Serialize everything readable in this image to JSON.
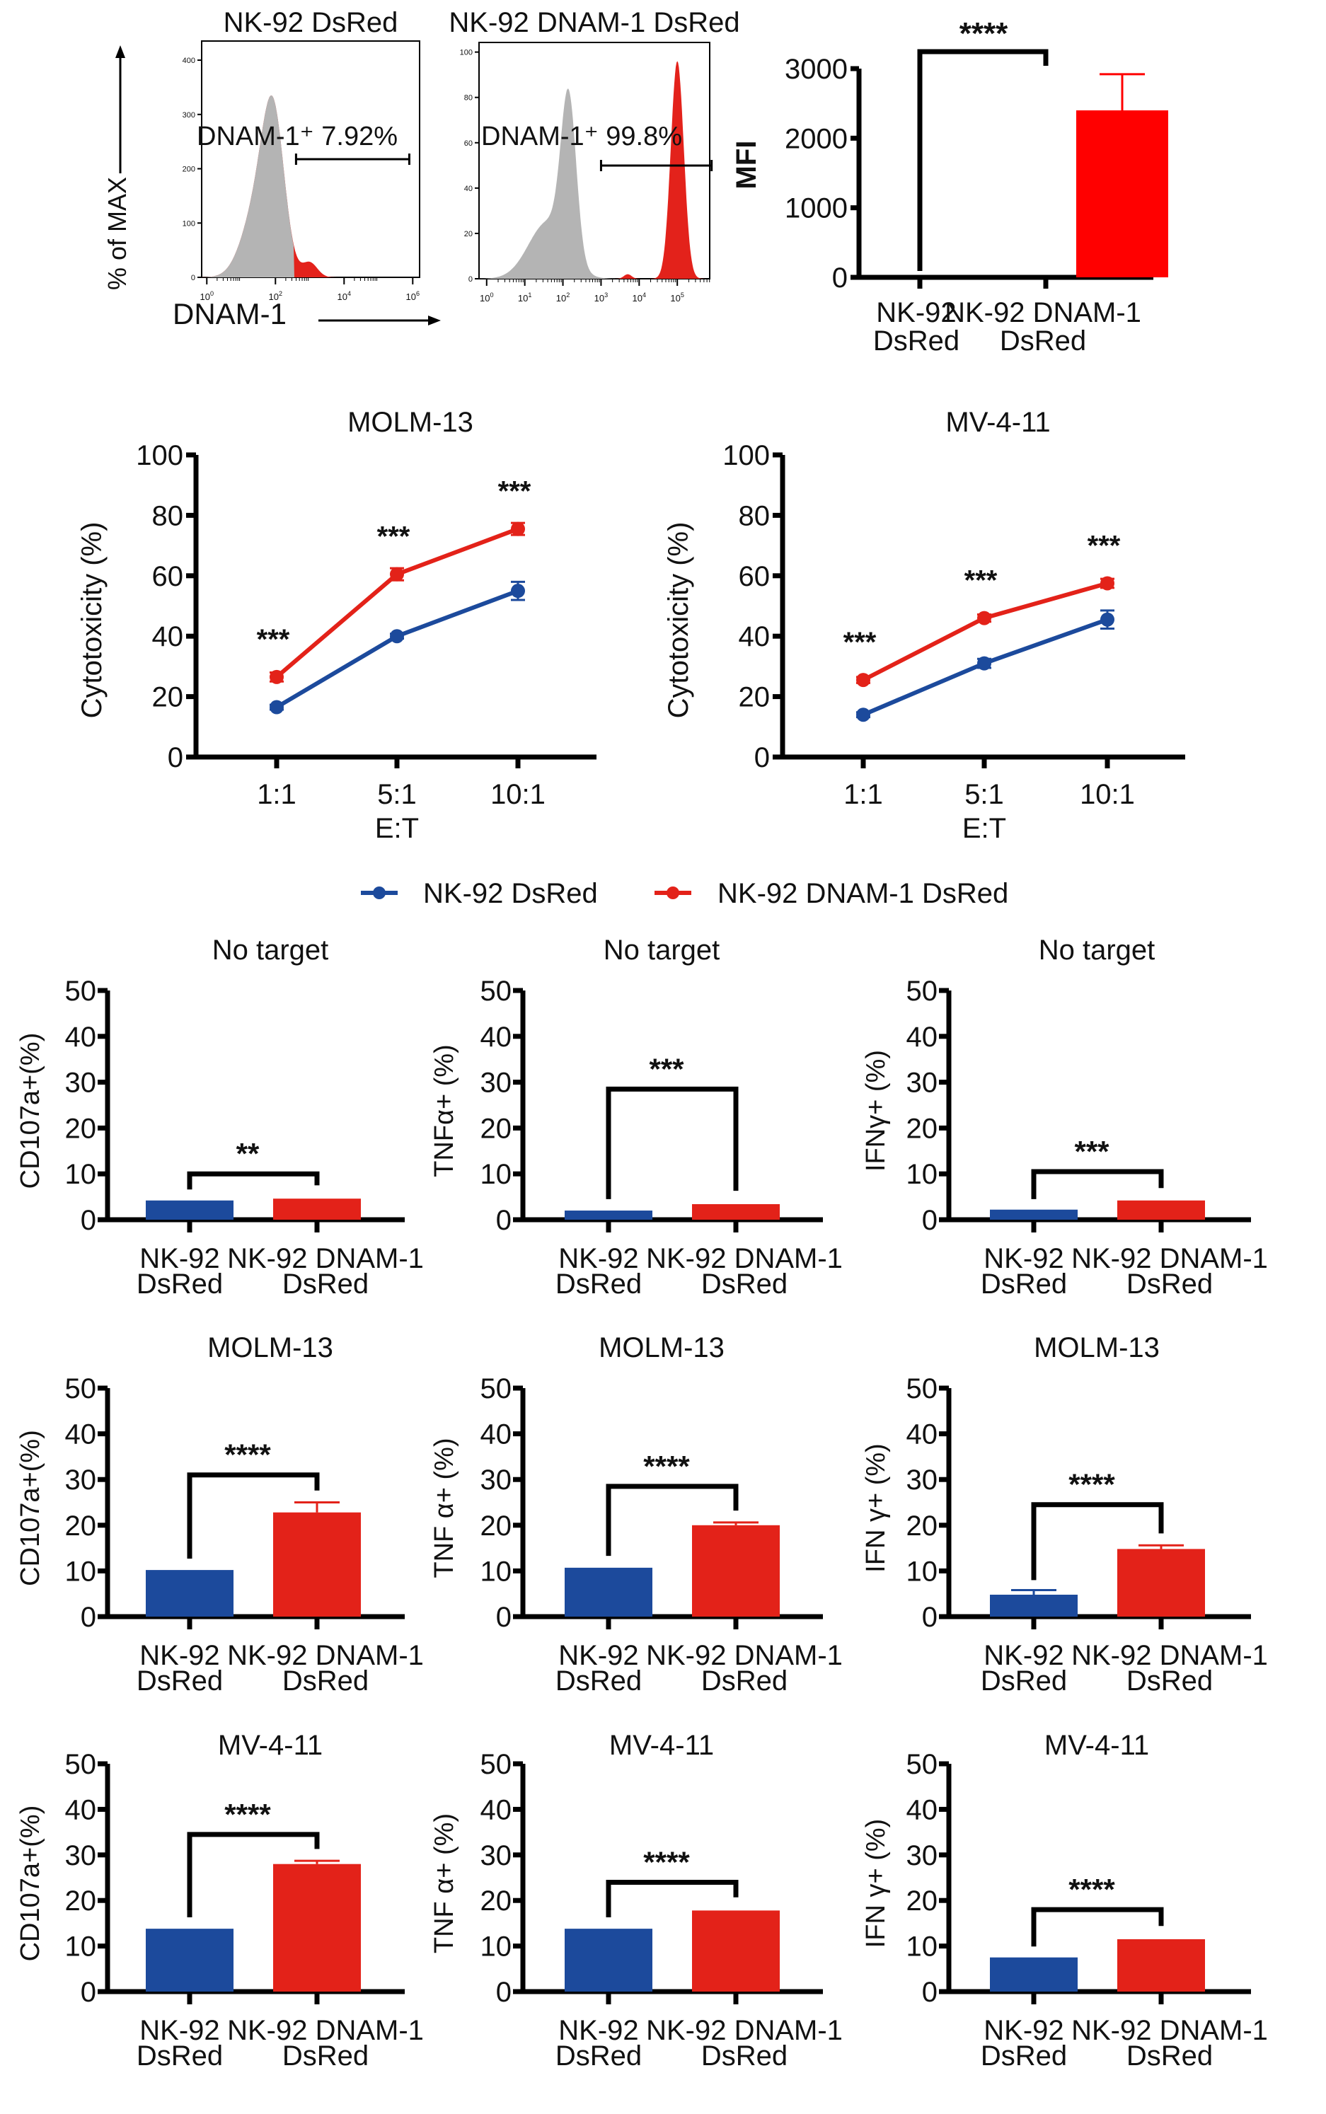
{
  "colors": {
    "blue": "#1c4a9c",
    "red": "#e32219",
    "mfi_red": "#ff0000",
    "hist_gray": "#b4b4b4",
    "hist_red": "#e3221b"
  },
  "legend": {
    "items": [
      {
        "label": "NK-92 DsRed",
        "color": "#1c4a9c"
      },
      {
        "label": "NK-92 DNAM-1 DsRed",
        "color": "#e32219"
      }
    ]
  },
  "chart_data": [
    {
      "id": "hist1",
      "type": "area",
      "title": "NK-92 DsRed",
      "ylabel": "% of MAX",
      "xlabel": "DNAM-1",
      "yticks": [
        "0",
        "100",
        "200",
        "300",
        "400"
      ],
      "ylim": [
        0,
        430
      ],
      "xticks": [
        "10^0",
        "10^2",
        "10^4",
        "10^6"
      ],
      "xscale": "log",
      "gate_label": "DNAM-1⁺ 7.92%",
      "gate_range_log": [
        2.6,
        5.9
      ],
      "series": [
        {
          "name": "isotype (gray)",
          "peak_log": 1.9,
          "peak": 380
        },
        {
          "name": "DNAM-1 (red)",
          "secondary_peak_log": 3.0,
          "secondary_peak": 27
        }
      ]
    },
    {
      "id": "hist2",
      "type": "area",
      "title": "NK-92 DNAM-1 DsRed",
      "yticks": [
        "0",
        "20",
        "40",
        "60",
        "80",
        "100"
      ],
      "ylim": [
        0,
        103
      ],
      "xticks": [
        "10^0",
        "10^1",
        "10^2",
        "10^3",
        "10^4",
        "10^5"
      ],
      "xscale": "log",
      "gate_label": "DNAM-1⁺ 99.8%",
      "gate_range_log": [
        3.0,
        5.9
      ],
      "series": [
        {
          "name": "isotype (gray)",
          "peak_log": 2.1,
          "peak": 92
        },
        {
          "name": "DNAM-1 (red)",
          "peak_log": 5.0,
          "peak": 96
        }
      ]
    },
    {
      "id": "mfi",
      "type": "bar",
      "title": "",
      "ylabel": "MFI",
      "yticks": [
        "0",
        "1000",
        "2000",
        "3000"
      ],
      "ylim": [
        0,
        3000
      ],
      "categories": [
        "NK-92\nDsRed",
        "NK-92 DNAM-1\nDsRed"
      ],
      "values": [
        0,
        2400
      ],
      "errors": [
        0,
        520
      ],
      "significance": "****"
    },
    {
      "id": "line-molm13",
      "type": "line",
      "title": "MOLM-13",
      "ylabel": "Cytotoxicity (%)",
      "xlabel": "E:T",
      "categories": [
        "1:1",
        "5:1",
        "10:1"
      ],
      "yticks": [
        "0",
        "20",
        "40",
        "60",
        "80",
        "100"
      ],
      "ylim": [
        0,
        100
      ],
      "series": [
        {
          "name": "NK-92 DsRed",
          "values": [
            16.5,
            40,
            55
          ],
          "errors": [
            0.8,
            0.8,
            3
          ]
        },
        {
          "name": "NK-92 DNAM-1 DsRed",
          "values": [
            26.5,
            60.5,
            75.5
          ],
          "errors": [
            1.5,
            2,
            2
          ]
        }
      ],
      "significance": [
        "***",
        "***",
        "***"
      ]
    },
    {
      "id": "line-mv411",
      "type": "line",
      "title": "MV-4-11",
      "ylabel": "Cytotoxicity (%)",
      "xlabel": "E:T",
      "categories": [
        "1:1",
        "5:1",
        "10:1"
      ],
      "yticks": [
        "0",
        "20",
        "40",
        "60",
        "80",
        "100"
      ],
      "ylim": [
        0,
        100
      ],
      "series": [
        {
          "name": "NK-92 DsRed",
          "values": [
            14,
            31,
            45.5
          ],
          "errors": [
            0.8,
            1.5,
            3
          ]
        },
        {
          "name": "NK-92 DNAM-1 DsRed",
          "values": [
            25.5,
            46,
            57.5
          ],
          "errors": [
            1,
            1.2,
            1.5
          ]
        }
      ],
      "significance": [
        "***",
        "***",
        "***"
      ]
    },
    {
      "id": "cd107a-none",
      "type": "bar",
      "title": "No target",
      "ylabel": "CD107a+(%)",
      "yticks": [
        "0",
        "10",
        "20",
        "30",
        "40",
        "50"
      ],
      "ylim": [
        0,
        50
      ],
      "categories": [
        "NK-92\nDsRed",
        "NK-92 DNAM-1\nDsRed"
      ],
      "values": [
        4.2,
        4.6
      ],
      "errors": [
        0.2,
        0.3
      ],
      "significance": "**",
      "bracket_y": 10
    },
    {
      "id": "tnfa-none",
      "type": "bar",
      "title": "No target",
      "ylabel": "TNFα+ (%)",
      "yticks": [
        "0",
        "10",
        "20",
        "30",
        "40",
        "50"
      ],
      "ylim": [
        0,
        50
      ],
      "categories": [
        "NK-92\nDsRed",
        "NK-92 DNAM-1\nDsRed"
      ],
      "values": [
        2.0,
        3.4
      ],
      "errors": [
        0.3,
        0.3
      ],
      "significance": "***",
      "bracket_y": 28.5
    },
    {
      "id": "ifng-none",
      "type": "bar",
      "title": "No target",
      "ylabel": "IFNγ+ (%)",
      "yticks": [
        "0",
        "10",
        "20",
        "30",
        "40",
        "50"
      ],
      "ylim": [
        0,
        50
      ],
      "categories": [
        "NK-92\nDsRed",
        "NK-92 DNAM-1\nDsRed"
      ],
      "values": [
        2.2,
        4.2
      ],
      "errors": [
        0.1,
        0.1
      ],
      "significance": "***",
      "bracket_y": 10.5
    },
    {
      "id": "cd107a-molm13",
      "type": "bar",
      "title": "MOLM-13",
      "ylabel": "CD107a+(%)",
      "yticks": [
        "0",
        "10",
        "20",
        "30",
        "40",
        "50"
      ],
      "ylim": [
        0,
        50
      ],
      "categories": [
        "NK-92\nDsRed",
        "NK-92 DNAM-1\nDsRed"
      ],
      "values": [
        10.2,
        22.8
      ],
      "errors": [
        0.3,
        2.2
      ],
      "significance": "****",
      "bracket_y": 31
    },
    {
      "id": "tnfa-molm13",
      "type": "bar",
      "title": "MOLM-13",
      "ylabel": "TNF α+ (%)",
      "yticks": [
        "0",
        "10",
        "20",
        "30",
        "40",
        "50"
      ],
      "ylim": [
        0,
        50
      ],
      "categories": [
        "NK-92\nDsRed",
        "NK-92 DNAM-1\nDsRed"
      ],
      "values": [
        10.7,
        20.0
      ],
      "errors": [
        0.4,
        0.6
      ],
      "significance": "****",
      "bracket_y": 28.5
    },
    {
      "id": "ifng-molm13",
      "type": "bar",
      "title": "MOLM-13",
      "ylabel": "IFN γ+ (%)",
      "yticks": [
        "0",
        "10",
        "20",
        "30",
        "40",
        "50"
      ],
      "ylim": [
        0,
        50
      ],
      "categories": [
        "NK-92\nDsRed",
        "NK-92 DNAM-1\nDsRed"
      ],
      "values": [
        4.8,
        14.8
      ],
      "errors": [
        1.0,
        0.8
      ],
      "significance": "****",
      "bracket_y": 24.5
    },
    {
      "id": "cd107a-mv411",
      "type": "bar",
      "title": "MV-4-11",
      "ylabel": "CD107a+(%)",
      "yticks": [
        "0",
        "10",
        "20",
        "30",
        "40",
        "50"
      ],
      "ylim": [
        0,
        50
      ],
      "categories": [
        "NK-92\nDsRed",
        "NK-92 DNAM-1\nDsRed"
      ],
      "values": [
        13.8,
        28.0
      ],
      "errors": [
        0.3,
        0.7
      ],
      "significance": "****",
      "bracket_y": 34.5
    },
    {
      "id": "tnfa-mv411",
      "type": "bar",
      "title": "MV-4-11",
      "ylabel": "TNF α+ (%)",
      "yticks": [
        "0",
        "10",
        "20",
        "30",
        "40",
        "50"
      ],
      "ylim": [
        0,
        50
      ],
      "categories": [
        "NK-92\nDsRed",
        "NK-92 DNAM-1\nDsRed"
      ],
      "values": [
        13.8,
        17.8
      ],
      "errors": [
        0.3,
        0.3
      ],
      "significance": "****",
      "bracket_y": 24
    },
    {
      "id": "ifng-mv411",
      "type": "bar",
      "title": "MV-4-11",
      "ylabel": "IFN γ+ (%)",
      "yticks": [
        "0",
        "10",
        "20",
        "30",
        "40",
        "50"
      ],
      "ylim": [
        0,
        50
      ],
      "categories": [
        "NK-92\nDsRed",
        "NK-92 DNAM-1\nDsRed"
      ],
      "values": [
        7.5,
        11.5
      ],
      "errors": [
        0.2,
        0.3
      ],
      "significance": "****",
      "bracket_y": 18
    }
  ]
}
